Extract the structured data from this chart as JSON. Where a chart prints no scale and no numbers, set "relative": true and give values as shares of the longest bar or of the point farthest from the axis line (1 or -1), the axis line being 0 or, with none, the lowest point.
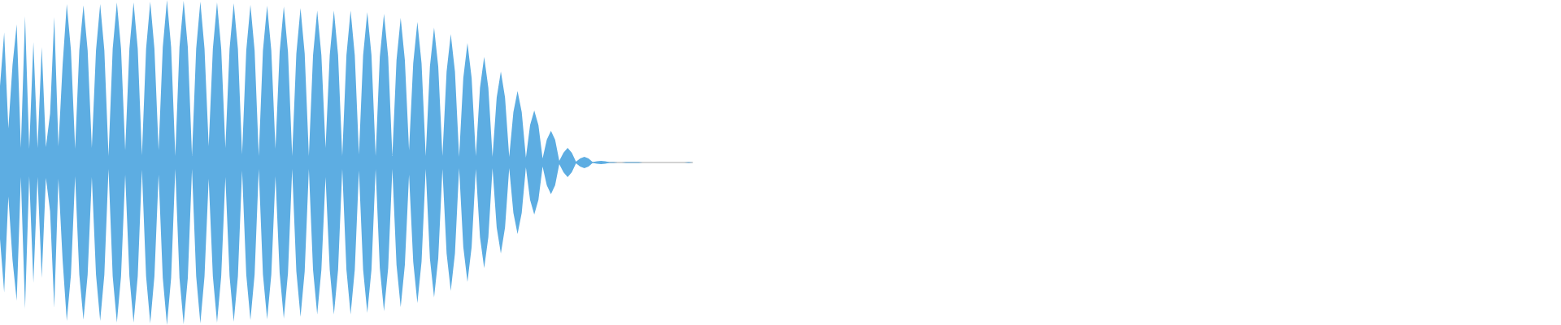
{
  "chart_data": {
    "type": "area",
    "relative": true,
    "categories": [
      null,
      null,
      null,
      null,
      null,
      null,
      null,
      null,
      null,
      null,
      null,
      null,
      null,
      null,
      null,
      null,
      null,
      null,
      null,
      null,
      null,
      null,
      null,
      null,
      null,
      null,
      null,
      null,
      null,
      null,
      null,
      null,
      null,
      null,
      null,
      null,
      null,
      null,
      null,
      null,
      null,
      null,
      null,
      null,
      null,
      null,
      null,
      null,
      null,
      null,
      null,
      null,
      null,
      null,
      null,
      null,
      null,
      null,
      null,
      null,
      null,
      null,
      null,
      null,
      null,
      null,
      null,
      null,
      null,
      null,
      null,
      null,
      null,
      null,
      null,
      null,
      null,
      null,
      null,
      null,
      null,
      null,
      null,
      null,
      null,
      null,
      null,
      null,
      null,
      null,
      null,
      null,
      null,
      null,
      null,
      null,
      null,
      null,
      null,
      null,
      null,
      null,
      null,
      null,
      null,
      null,
      null,
      null,
      null,
      null,
      null,
      null,
      null,
      null,
      null,
      null,
      null,
      null,
      null,
      null,
      null,
      null,
      null,
      null,
      null,
      null,
      null,
      null,
      null,
      null,
      null,
      null,
      null,
      null,
      null,
      null,
      null,
      null,
      null,
      null,
      null,
      null,
      null,
      null,
      null,
      null,
      null,
      null,
      null,
      null,
      null,
      null,
      null,
      null,
      null,
      null,
      null,
      null,
      null,
      null,
      null,
      null,
      null,
      null,
      null,
      null,
      null
    ],
    "series": [
      {
        "color": "#5dade2",
        "values": [
          0.47,
          0.8,
          0.21,
          0.6,
          0.85,
          0.09,
          0.9,
          0.085,
          0.74,
          0.09,
          0.71,
          0.095,
          0.3,
          0.895,
          0.1,
          0.6,
          0.975,
          0.69,
          0.085,
          0.69,
          0.967,
          0.69,
          0.09,
          0.69,
          0.975,
          0.69,
          0.04,
          0.7,
          0.985,
          0.7,
          0.075,
          0.7,
          0.985,
          0.7,
          0.045,
          0.7,
          0.99,
          0.7,
          0.075,
          0.71,
          1.0,
          0.71,
          0.04,
          0.71,
          0.995,
          0.71,
          0.04,
          0.7,
          0.99,
          0.7,
          0.1,
          0.7,
          0.985,
          0.7,
          0.09,
          0.7,
          0.98,
          0.7,
          0.05,
          0.69,
          0.97,
          0.69,
          0.04,
          0.69,
          0.965,
          0.69,
          0.085,
          0.68,
          0.96,
          0.68,
          0.04,
          0.67,
          0.95,
          0.67,
          0.04,
          0.66,
          0.935,
          0.66,
          0.09,
          0.66,
          0.935,
          0.66,
          0.04,
          0.66,
          0.935,
          0.66,
          0.05,
          0.66,
          0.925,
          0.66,
          0.04,
          0.65,
          0.915,
          0.65,
          0.04,
          0.63,
          0.89,
          0.63,
          0.075,
          0.61,
          0.865,
          0.61,
          0.04,
          0.59,
          0.83,
          0.59,
          0.04,
          0.56,
          0.79,
          0.56,
          0.035,
          0.52,
          0.735,
          0.52,
          0.04,
          0.46,
          0.65,
          0.46,
          0.035,
          0.4,
          0.56,
          0.4,
          0.035,
          0.31,
          0.44,
          0.31,
          0.03,
          0.23,
          0.32,
          0.23,
          0.025,
          0.14,
          0.195,
          0.14,
          0.01,
          0.06,
          0.09,
          0.06,
          0.005,
          0.025,
          0.035,
          0.025,
          0.003,
          0.007,
          0.01,
          0.007,
          0.003,
          0.003,
          0,
          0,
          0.003,
          0.003,
          0.003,
          0.003,
          0,
          0,
          0,
          0,
          0,
          0,
          0,
          0,
          0,
          0,
          0,
          0.003,
          0
        ]
      },
      {
        "color": "#5dade2",
        "values": [
          -0.47,
          -0.8,
          -0.21,
          -0.6,
          -0.85,
          -0.09,
          -0.9,
          -0.085,
          -0.74,
          -0.09,
          -0.71,
          -0.095,
          -0.3,
          -0.895,
          -0.1,
          -0.6,
          -0.975,
          -0.69,
          -0.085,
          -0.69,
          -0.967,
          -0.69,
          -0.09,
          -0.69,
          -0.975,
          -0.69,
          -0.04,
          -0.7,
          -0.985,
          -0.7,
          -0.075,
          -0.7,
          -0.985,
          -0.7,
          -0.045,
          -0.7,
          -0.99,
          -0.7,
          -0.075,
          -0.71,
          -1.0,
          -0.71,
          -0.04,
          -0.71,
          -0.995,
          -0.71,
          -0.04,
          -0.7,
          -0.99,
          -0.7,
          -0.1,
          -0.7,
          -0.985,
          -0.7,
          -0.09,
          -0.7,
          -0.98,
          -0.7,
          -0.05,
          -0.69,
          -0.97,
          -0.69,
          -0.04,
          -0.69,
          -0.965,
          -0.69,
          -0.085,
          -0.68,
          -0.96,
          -0.68,
          -0.04,
          -0.67,
          -0.95,
          -0.67,
          -0.04,
          -0.66,
          -0.935,
          -0.66,
          -0.09,
          -0.66,
          -0.935,
          -0.66,
          -0.04,
          -0.66,
          -0.935,
          -0.66,
          -0.05,
          -0.66,
          -0.925,
          -0.66,
          -0.04,
          -0.65,
          -0.915,
          -0.65,
          -0.04,
          -0.63,
          -0.89,
          -0.63,
          -0.075,
          -0.61,
          -0.865,
          -0.61,
          -0.04,
          -0.59,
          -0.83,
          -0.59,
          -0.04,
          -0.56,
          -0.79,
          -0.56,
          -0.035,
          -0.52,
          -0.735,
          -0.52,
          -0.04,
          -0.46,
          -0.65,
          -0.46,
          -0.035,
          -0.4,
          -0.56,
          -0.4,
          -0.035,
          -0.31,
          -0.44,
          -0.31,
          -0.03,
          -0.23,
          -0.32,
          -0.23,
          -0.025,
          -0.14,
          -0.195,
          -0.14,
          -0.01,
          -0.06,
          -0.09,
          -0.06,
          -0.005,
          -0.025,
          -0.035,
          -0.025,
          -0.003,
          -0.007,
          -0.01,
          -0.007,
          -0.003,
          -0.003,
          0,
          0,
          -0.003,
          -0.003,
          -0.003,
          -0.003,
          0,
          0,
          0,
          0,
          0,
          0,
          0,
          0,
          0,
          0,
          0,
          -0.003,
          0
        ]
      }
    ]
  }
}
